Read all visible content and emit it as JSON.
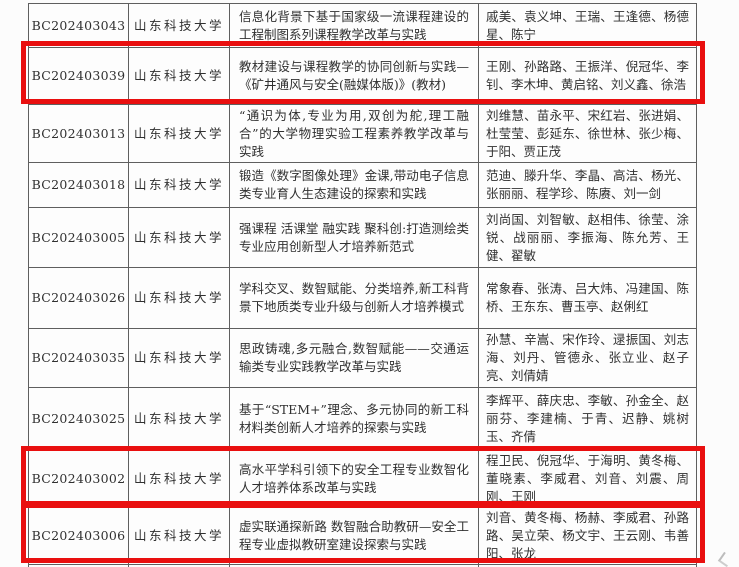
{
  "table": {
    "rows": [
      {
        "code": "BC202403043",
        "university": "山东科技大学",
        "title": "信息化背景下基于国家级一流课程建设的工程制图系列课程教学改革与实践",
        "members": "戚美、袁义坤、王瑞、王逢德、杨德星、陈宁",
        "highlighted": false
      },
      {
        "code": "BC202403039",
        "university": "山东科技大学",
        "title": "教材建设与课程教学的协同创新与实践—《矿井通风与安全(融媒体版)》(教材)",
        "members": "王刚、孙路路、王振洋、倪冠华、李钊、李木坤、黄启铭、刘义鑫、徐浩",
        "highlighted": true
      },
      {
        "code": "BC202403013",
        "university": "山东科技大学",
        "title": "“通识为体,专业为用,双创为舵,理工融合”的大学物理实验工程素养教学改革与实践",
        "members": "刘维慧、苗永平、宋红岩、张进娟、杜莹莹、彭延东、徐世林、张少梅、于阳、贾正茂",
        "highlighted": false
      },
      {
        "code": "BC202403018",
        "university": "山东科技大学",
        "title": "锻造《数字图像处理》金课,带动电子信息类专业育人生态建设的探索和实践",
        "members": "范迪、滕升华、李晶、高洁、杨光、张丽丽、程学珍、陈赓、刘一剑",
        "highlighted": false
      },
      {
        "code": "BC202403005",
        "university": "山东科技大学",
        "title": "强课程 活课堂 融实践 聚科创:打造测绘类专业应用创新型人才培养新范式",
        "members": "刘尚国、刘智敏、赵相伟、徐莹、涂锐、战丽丽、李振海、陈允芳、王健、翟敏",
        "highlighted": false
      },
      {
        "code": "BC202403026",
        "university": "山东科技大学",
        "title": "学科交叉、数智赋能、分类培养,新工科背景下地质类专业升级与创新人才培养模式",
        "members": "常象春、张涛、吕大炜、冯建国、陈桥、王东东、曹玉亭、赵俐红",
        "highlighted": false
      },
      {
        "code": "BC202403035",
        "university": "山东科技大学",
        "title": "思政铸魂,多元融合,数智赋能——交通运输类专业实践教学改革与实践",
        "members": "孙慧、辛嵩、宋作玲、逯振国、刘志海、刘丹、管德永、张立业、赵子亮、刘倩婧",
        "highlighted": false
      },
      {
        "code": "BC202403025",
        "university": "山东科技大学",
        "title": "基于“STEM+”理念、多元协同的新工科材料类创新人才培养的探索与实践",
        "members": "李辉平、薛庆忠、李敏、孙金全、赵丽芬、李建楠、于青、迟静、姚树玉、齐倩",
        "highlighted": false
      },
      {
        "code": "BC202403002",
        "university": "山东科技大学",
        "title": "高水平学科引领下的安全工程专业数智化人才培养体系改革与实践",
        "members": "程卫民、倪冠华、于海明、黄冬梅、董晓素、李威君、刘音、刘震、周刚、王刚",
        "highlighted": true
      },
      {
        "code": "BC202403006",
        "university": "山东科技大学",
        "title": "虚实联通探新路 数智融合助教研—安全工程专业虚拟教研室建设探索与实践",
        "members": "刘音、黄冬梅、杨赫、李威君、孙路路、吴立荣、杨文宇、王云刚、韦善阳、张龙",
        "highlighted": true
      }
    ]
  },
  "annotations": {
    "highlight_color": "#e90f0f",
    "highlighted_codes": [
      "BC202403039",
      "BC202403002",
      "BC202403006"
    ]
  }
}
